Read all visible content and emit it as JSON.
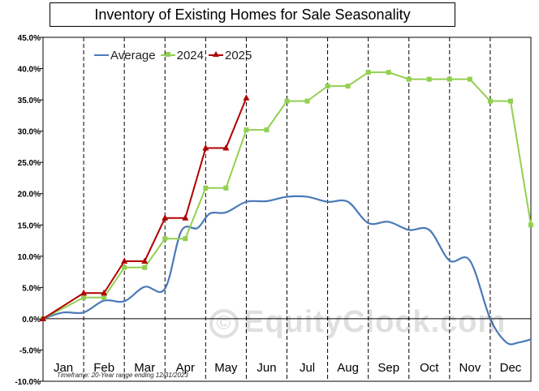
{
  "title": "Inventory of Existing Homes for Sale Seasonality",
  "footnote": "Timeframe: 20-Year range ending 12/31/2023",
  "watermark": {
    "symbol": "©",
    "text": "EquityClock.com"
  },
  "legend": [
    {
      "label": "Average",
      "series": 0
    },
    {
      "label": "2024",
      "series": 1
    },
    {
      "label": "2025",
      "series": 2
    }
  ],
  "chart_data": {
    "type": "line",
    "title": "Inventory of Existing Homes for Sale Seasonality",
    "xlabel": "",
    "ylabel": "",
    "ylim": [
      -0.1,
      0.45
    ],
    "yticks": [
      -0.1,
      -0.05,
      0.0,
      0.05,
      0.1,
      0.15,
      0.2,
      0.25,
      0.3,
      0.35,
      0.4,
      0.45
    ],
    "ytick_labels": [
      "-10.0%",
      "-5.0%",
      "0.0%",
      "5.0%",
      "10.0%",
      "15.0%",
      "20.0%",
      "25.0%",
      "30.0%",
      "35.0%",
      "40.0%",
      "45.0%"
    ],
    "x_unit": "months from start of year",
    "xlim": [
      0,
      12
    ],
    "categories": [
      "Jan",
      "Feb",
      "Mar",
      "Apr",
      "May",
      "Jun",
      "Jul",
      "Aug",
      "Sep",
      "Oct",
      "Nov",
      "Dec"
    ],
    "grid": "vertical dashed lines at month boundaries",
    "legend_position": "top-left",
    "series": [
      {
        "name": "Average",
        "color": "#4a7ab8",
        "style": "smooth",
        "x": [
          0,
          0.5,
          1,
          1.5,
          2,
          2.5,
          3,
          3.4,
          3.8,
          4.1,
          4.5,
          5,
          5.5,
          6,
          6.5,
          7,
          7.5,
          8,
          8.5,
          9,
          9.5,
          10,
          10.5,
          11,
          11.4,
          11.7,
          12
        ],
        "y": [
          0.0,
          0.01,
          0.01,
          0.029,
          0.028,
          0.051,
          0.048,
          0.14,
          0.145,
          0.168,
          0.17,
          0.187,
          0.188,
          0.195,
          0.195,
          0.187,
          0.187,
          0.153,
          0.155,
          0.142,
          0.142,
          0.093,
          0.093,
          0.0,
          -0.038,
          -0.038,
          -0.033
        ]
      },
      {
        "name": "2024",
        "color": "#92d050",
        "marker": "square",
        "x": [
          0,
          1,
          1.5,
          2,
          2.5,
          3,
          3.5,
          4,
          4.5,
          5,
          5.5,
          6,
          6.5,
          7,
          7.5,
          8,
          8.5,
          9,
          9.5,
          10,
          10.5,
          11,
          11.5,
          12
        ],
        "y": [
          0.0,
          0.034,
          0.034,
          0.082,
          0.082,
          0.128,
          0.128,
          0.209,
          0.209,
          0.302,
          0.302,
          0.348,
          0.348,
          0.372,
          0.372,
          0.394,
          0.394,
          0.383,
          0.383,
          0.383,
          0.383,
          0.348,
          0.348,
          0.15
        ]
      },
      {
        "name": "2025",
        "color": "#b00000",
        "marker": "triangle",
        "x": [
          0,
          1,
          1.5,
          2,
          2.5,
          3,
          3.5,
          4,
          4.5,
          5
        ],
        "y": [
          0.0,
          0.041,
          0.041,
          0.092,
          0.092,
          0.161,
          0.161,
          0.273,
          0.273,
          0.353
        ]
      }
    ]
  }
}
